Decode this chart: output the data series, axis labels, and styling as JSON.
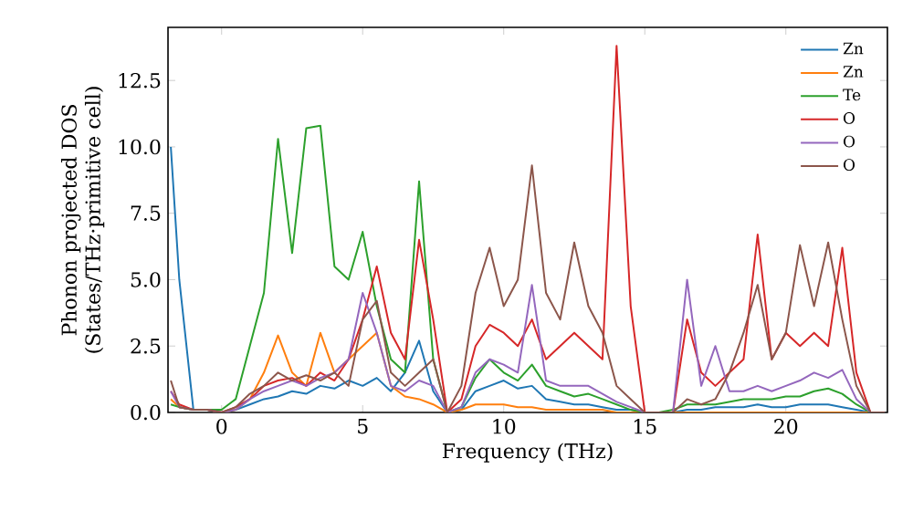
{
  "chart_data": {
    "type": "line",
    "xlabel": "Frequency (THz)",
    "ylabel": "Phonon projected DOS (States/THz·primitive cell)",
    "x": [
      -1.8,
      -1.5,
      -1.0,
      -0.5,
      0,
      0.5,
      1.0,
      1.5,
      2.0,
      2.5,
      3.0,
      3.5,
      4.0,
      4.5,
      5.0,
      5.5,
      6.0,
      6.5,
      7.0,
      7.5,
      8.0,
      8.5,
      9.0,
      9.5,
      10.0,
      10.5,
      11.0,
      11.5,
      12.0,
      12.5,
      13.0,
      13.5,
      14.0,
      14.5,
      15.0,
      15.5,
      16.0,
      16.5,
      17.0,
      17.5,
      18.0,
      18.5,
      19.0,
      19.5,
      20.0,
      20.5,
      21.0,
      21.5,
      22.0,
      22.5,
      23.0,
      23.5
    ],
    "series": [
      {
        "name": "Zn",
        "color": "#1f77b4",
        "values": [
          10.0,
          5.0,
          0.1,
          0.1,
          0.0,
          0.1,
          0.3,
          0.5,
          0.6,
          0.8,
          0.7,
          1.0,
          0.9,
          1.2,
          1.0,
          1.3,
          0.8,
          1.5,
          2.7,
          0.8,
          0.0,
          0.1,
          0.8,
          1.0,
          1.2,
          0.9,
          1.0,
          0.5,
          0.4,
          0.3,
          0.3,
          0.2,
          0.1,
          0.1,
          0.0,
          0.0,
          0.0,
          0.1,
          0.1,
          0.2,
          0.2,
          0.2,
          0.3,
          0.2,
          0.2,
          0.3,
          0.3,
          0.3,
          0.2,
          0.1,
          0.0,
          0.0
        ]
      },
      {
        "name": "Zn",
        "color": "#ff7f0e",
        "values": [
          0.5,
          0.2,
          0.1,
          0.1,
          0.0,
          0.1,
          0.5,
          1.5,
          2.9,
          1.5,
          1.0,
          3.0,
          1.5,
          2.0,
          2.5,
          3.0,
          1.0,
          0.6,
          0.5,
          0.3,
          0.0,
          0.1,
          0.3,
          0.3,
          0.3,
          0.2,
          0.2,
          0.1,
          0.1,
          0.1,
          0.1,
          0.1,
          0.0,
          0.0,
          0.0,
          0.0,
          0.0,
          0.0,
          0.0,
          0.0,
          0.0,
          0.0,
          0.0,
          0.0,
          0.0,
          0.0,
          0.0,
          0.0,
          0.0,
          0.0,
          0.0,
          0.0
        ]
      },
      {
        "name": "Te",
        "color": "#2ca02c",
        "values": [
          0.3,
          0.2,
          0.1,
          0.1,
          0.1,
          0.5,
          2.5,
          4.5,
          10.3,
          6.0,
          10.7,
          10.8,
          5.5,
          5.0,
          6.8,
          4.0,
          2.0,
          1.5,
          8.7,
          2.0,
          0.0,
          0.2,
          1.3,
          2.0,
          1.5,
          1.2,
          1.8,
          1.0,
          0.8,
          0.6,
          0.7,
          0.5,
          0.3,
          0.1,
          0.0,
          0.0,
          0.1,
          0.3,
          0.3,
          0.3,
          0.4,
          0.5,
          0.5,
          0.5,
          0.6,
          0.6,
          0.8,
          0.9,
          0.7,
          0.3,
          0.0,
          0.0
        ]
      },
      {
        "name": "O",
        "color": "#d62728",
        "values": [
          0.8,
          0.3,
          0.1,
          0.1,
          0.0,
          0.2,
          0.5,
          1.0,
          1.2,
          1.3,
          1.0,
          1.5,
          1.2,
          2.0,
          3.5,
          5.5,
          3.0,
          2.0,
          6.5,
          3.5,
          0.0,
          0.5,
          2.5,
          3.3,
          3.0,
          2.5,
          3.5,
          2.0,
          2.5,
          3.0,
          2.5,
          2.0,
          13.8,
          4.0,
          0.0,
          0.0,
          0.0,
          3.5,
          1.5,
          1.0,
          1.5,
          2.0,
          6.7,
          2.0,
          3.0,
          2.5,
          3.0,
          2.5,
          6.2,
          1.5,
          0.0,
          0.0
        ]
      },
      {
        "name": "O",
        "color": "#9467bd",
        "values": [
          0.8,
          0.2,
          0.1,
          0.1,
          0.0,
          0.1,
          0.5,
          0.8,
          1.0,
          1.2,
          1.0,
          1.3,
          1.5,
          2.0,
          4.5,
          3.0,
          1.0,
          0.8,
          1.2,
          1.0,
          0.0,
          0.2,
          1.5,
          2.0,
          1.8,
          1.5,
          4.8,
          1.2,
          1.0,
          1.0,
          1.0,
          0.7,
          0.4,
          0.2,
          0.0,
          0.0,
          0.0,
          5.0,
          1.0,
          2.5,
          0.8,
          0.8,
          1.0,
          0.8,
          1.0,
          1.2,
          1.5,
          1.3,
          1.6,
          0.5,
          0.0,
          0.0
        ]
      },
      {
        "name": "O",
        "color": "#8c564b",
        "values": [
          1.2,
          0.2,
          0.1,
          0.1,
          0.0,
          0.2,
          0.7,
          1.0,
          1.5,
          1.2,
          1.4,
          1.2,
          1.5,
          1.0,
          3.5,
          4.2,
          1.5,
          1.0,
          1.5,
          2.0,
          0.0,
          1.0,
          4.5,
          6.2,
          4.0,
          5.0,
          9.3,
          4.5,
          3.5,
          6.4,
          4.0,
          3.0,
          1.0,
          0.5,
          0.0,
          0.0,
          0.0,
          0.5,
          0.3,
          0.5,
          1.5,
          3.0,
          4.8,
          2.0,
          3.0,
          6.3,
          4.0,
          6.4,
          3.5,
          1.0,
          0.0,
          0.0
        ]
      }
    ],
    "xlim": [
      -1.9,
      23.6
    ],
    "ylim": [
      0,
      14.5
    ],
    "xticks": [
      0,
      5,
      10,
      15,
      20
    ],
    "yticks": [
      {
        "value": 0,
        "label": "0.0"
      },
      {
        "value": 2.5,
        "label": "2.5"
      },
      {
        "value": 5,
        "label": "5.0"
      },
      {
        "value": 7.5,
        "label": "7.5"
      },
      {
        "value": 10,
        "label": "10.0"
      },
      {
        "value": 12.5,
        "label": "12.5"
      }
    ],
    "legend": "top right",
    "line_style": "solid"
  }
}
